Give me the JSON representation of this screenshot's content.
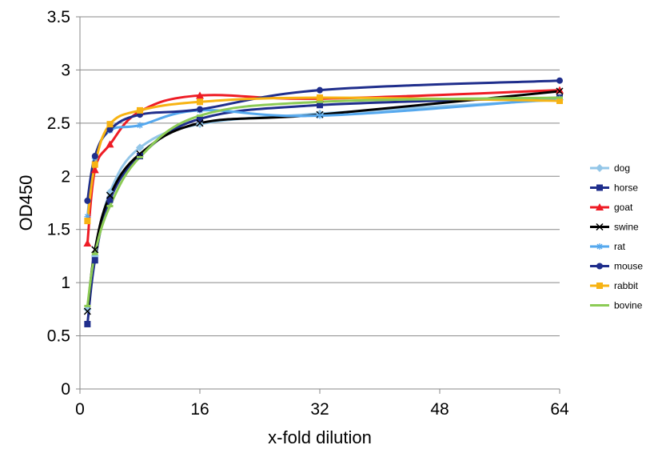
{
  "chart_data": {
    "type": "line",
    "xlabel": "x-fold dilution",
    "ylabel": "OD450",
    "xlim": [
      0,
      64
    ],
    "ylim": [
      0,
      3.5
    ],
    "x_ticks": [
      "0",
      "16",
      "32",
      "48",
      "64"
    ],
    "y_ticks": [
      "0",
      "0.5",
      "1",
      "1.5",
      "2",
      "2.5",
      "3",
      "3.5"
    ],
    "grid": "horizontal",
    "legend_position": "right",
    "x": [
      1,
      2,
      4,
      8,
      16,
      32,
      64
    ],
    "series": [
      {
        "name": "dog",
        "color": "#93C6E8",
        "marker": "diamond",
        "values": [
          0.75,
          1.25,
          1.85,
          2.27,
          2.49,
          2.59,
          2.72
        ]
      },
      {
        "name": "horse",
        "color": "#1F2E8C",
        "marker": "square",
        "values": [
          0.61,
          1.21,
          1.78,
          2.19,
          2.54,
          2.67,
          2.74
        ]
      },
      {
        "name": "goat",
        "color": "#EE1C25",
        "marker": "triangle",
        "values": [
          1.37,
          2.06,
          2.3,
          2.61,
          2.76,
          2.73,
          2.81
        ]
      },
      {
        "name": "swine",
        "color": "#000000",
        "marker": "x",
        "values": [
          0.73,
          1.31,
          1.82,
          2.21,
          2.5,
          2.58,
          2.8
        ]
      },
      {
        "name": "rat",
        "color": "#55A8EE",
        "marker": "star",
        "values": [
          1.62,
          2.17,
          2.43,
          2.48,
          2.62,
          2.57,
          2.73
        ]
      },
      {
        "name": "mouse",
        "color": "#1F2E8C",
        "marker": "circle",
        "values": [
          1.77,
          2.19,
          2.44,
          2.58,
          2.63,
          2.81,
          2.9
        ]
      },
      {
        "name": "rabbit",
        "color": "#F7B313",
        "marker": "square",
        "values": [
          1.58,
          2.11,
          2.49,
          2.62,
          2.7,
          2.74,
          2.71
        ]
      },
      {
        "name": "bovine",
        "color": "#8CCB55",
        "marker": "dash",
        "values": [
          0.78,
          1.27,
          1.72,
          2.18,
          2.57,
          2.7,
          2.74
        ]
      }
    ]
  }
}
